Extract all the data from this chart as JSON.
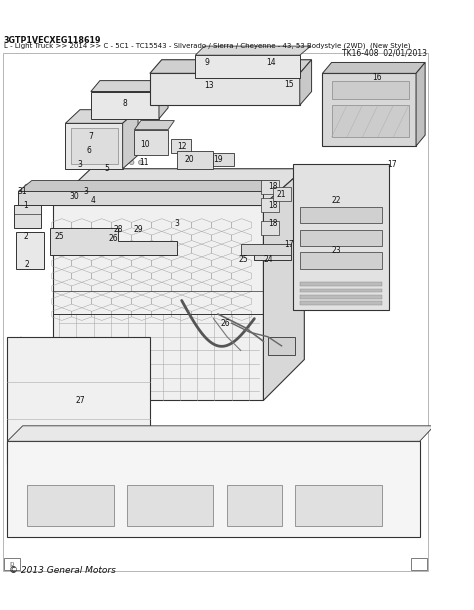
{
  "background_color": "#ffffff",
  "header_line1": "3GTP1VECXEG118619",
  "header_line2": "L - Light Truck >> 2014 >> C - 5C1 - TC15543 - Silverado / Sierra / Cheyenne - 43, 53 Bodystyle (2WD)  (New Style)",
  "header_line3": "TK16-408  02/01/2013",
  "footer_text": "© 2013 General Motors",
  "header_fontsize": 5.8,
  "footer_fontsize": 6.5,
  "text_color": "#111111",
  "diagram_color": "#333333",
  "light_gray": "#aaaaaa",
  "mid_gray": "#777777"
}
